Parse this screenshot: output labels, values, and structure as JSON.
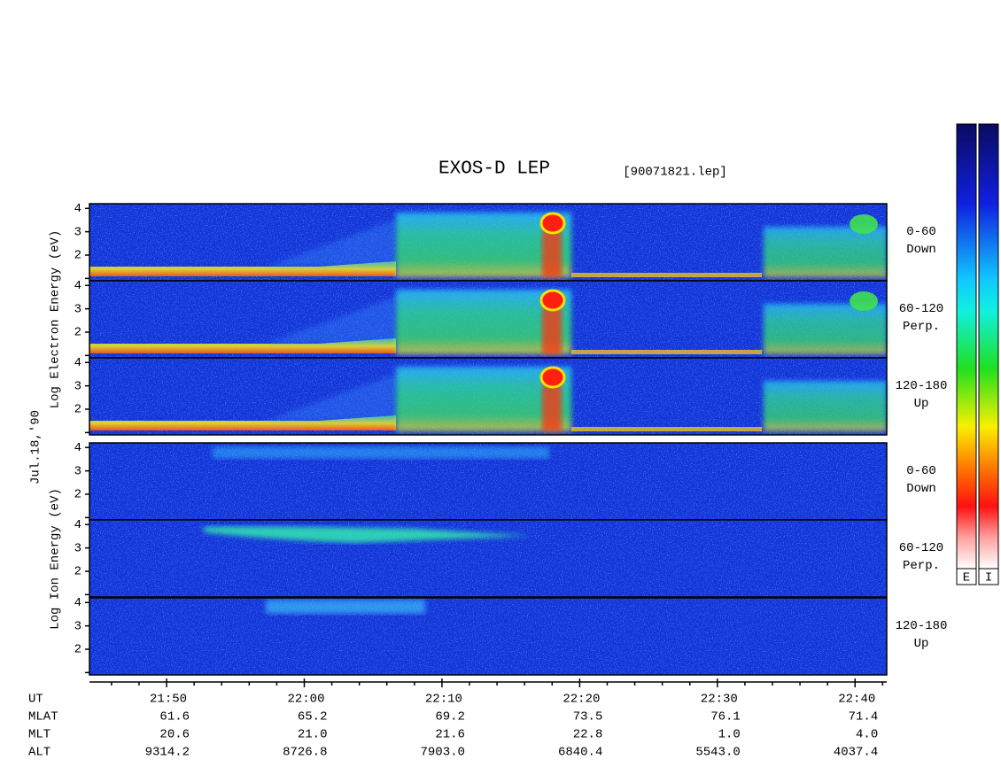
{
  "chart_data": {
    "type": "spectrogram",
    "title": "EXOS-D LEP",
    "subtitle": "[90071821.lep]",
    "date_label": "Jul.18,'90",
    "species": [
      {
        "label": "Log Electron Energy (eV)",
        "code": "E",
        "panels": [
          {
            "pitch": "0-60",
            "direction": "Down"
          },
          {
            "pitch": "60-120",
            "direction": "Perp."
          },
          {
            "pitch": "120-180",
            "direction": "Up"
          }
        ]
      },
      {
        "label": "Log Ion Energy (eV)",
        "code": "I",
        "panels": [
          {
            "pitch": "0-60",
            "direction": "Down"
          },
          {
            "pitch": "60-120",
            "direction": "Perp."
          },
          {
            "pitch": "120-180",
            "direction": "Up"
          }
        ]
      }
    ],
    "ylim": [
      0.9,
      4.2
    ],
    "yticks": [
      2,
      3,
      4
    ],
    "yminorticks": [
      1
    ],
    "xlim": [
      1304.4,
      1362.3
    ],
    "xticks": [
      {
        "value": 1310,
        "label": "21:50"
      },
      {
        "value": 1320,
        "label": "22:00"
      },
      {
        "value": 1330,
        "label": "22:10"
      },
      {
        "value": 1340,
        "label": "22:20"
      },
      {
        "value": 1350,
        "label": "22:30"
      },
      {
        "value": 1360,
        "label": "22:40"
      }
    ],
    "xminorticks": [
      1306,
      1308,
      1312,
      1314,
      1316,
      1318,
      1322,
      1324,
      1326,
      1328,
      1332,
      1334,
      1336,
      1338,
      1342,
      1344,
      1346,
      1348,
      1352,
      1354,
      1356,
      1358,
      1362
    ],
    "xlabel": "UT",
    "ephemeris": [
      {
        "label": "MLAT",
        "values": [
          "61.6",
          "65.2",
          "69.2",
          "73.5",
          "76.1",
          "71.4"
        ]
      },
      {
        "label": "MLT",
        "values": [
          "20.6",
          "21.0",
          "21.6",
          "22.8",
          "1.0",
          "4.0"
        ]
      },
      {
        "label": "ALT",
        "values": [
          "9314.2",
          "8726.8",
          "7903.0",
          "6840.4",
          "5543.0",
          "4037.4"
        ]
      }
    ]
  }
}
